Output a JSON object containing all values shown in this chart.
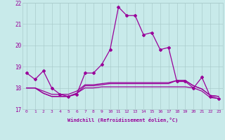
{
  "xlabel": "Windchill (Refroidissement éolien,°C)",
  "bg_color": "#c8eaea",
  "grid_color": "#aacccc",
  "line_color": "#990099",
  "xlim": [
    -0.5,
    23.5
  ],
  "ylim": [
    17.0,
    22.0
  ],
  "yticks": [
    17,
    18,
    19,
    20,
    21,
    22
  ],
  "xticks": [
    0,
    1,
    2,
    3,
    4,
    5,
    6,
    7,
    8,
    9,
    10,
    11,
    12,
    13,
    14,
    15,
    16,
    17,
    18,
    19,
    20,
    21,
    22,
    23
  ],
  "series1": [
    18.7,
    18.4,
    18.8,
    18.0,
    17.7,
    17.6,
    17.7,
    18.7,
    18.7,
    19.1,
    19.8,
    21.8,
    21.4,
    21.4,
    20.5,
    20.6,
    19.8,
    19.9,
    18.3,
    18.3,
    18.0,
    18.5,
    17.6,
    17.5
  ],
  "series2": [
    18.0,
    18.0,
    17.75,
    17.6,
    17.6,
    17.6,
    17.75,
    18.0,
    18.0,
    18.05,
    18.05,
    18.05,
    18.05,
    18.05,
    18.05,
    18.05,
    18.05,
    18.05,
    18.05,
    18.05,
    18.0,
    17.85,
    17.55,
    17.5
  ],
  "series3": [
    18.0,
    18.0,
    17.75,
    17.6,
    17.6,
    17.6,
    17.75,
    18.1,
    18.1,
    18.15,
    18.2,
    18.2,
    18.2,
    18.2,
    18.2,
    18.2,
    18.2,
    18.2,
    18.35,
    18.35,
    18.1,
    17.95,
    17.65,
    17.6
  ],
  "series4": [
    18.0,
    18.0,
    17.85,
    17.7,
    17.7,
    17.7,
    17.85,
    18.15,
    18.15,
    18.2,
    18.25,
    18.25,
    18.25,
    18.25,
    18.25,
    18.25,
    18.25,
    18.25,
    18.35,
    18.35,
    18.1,
    17.95,
    17.65,
    17.6
  ]
}
